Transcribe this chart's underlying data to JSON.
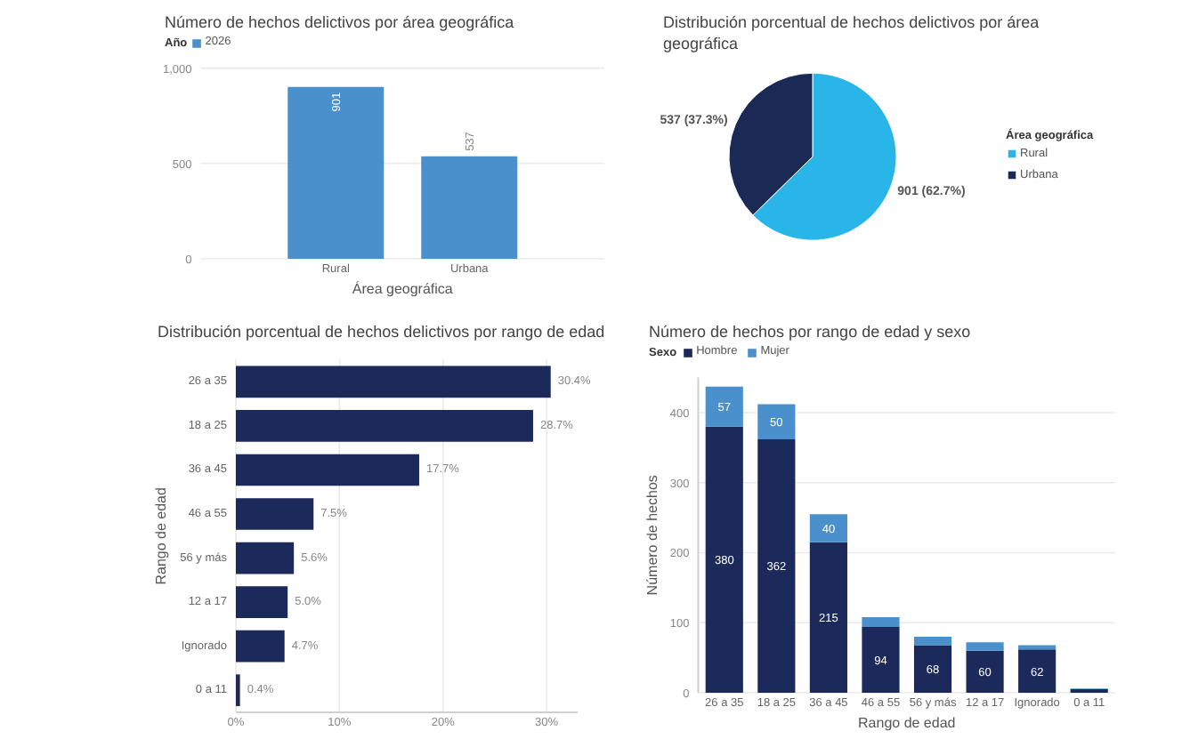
{
  "chart_data": [
    {
      "type": "bar",
      "title": "Número de hechos delictivos por área geográfica",
      "xlabel": "Área geográfica",
      "legend_title": "Año",
      "legend": "top left",
      "categories": [
        "Rural",
        "Urbana"
      ],
      "series": [
        {
          "name": "2026",
          "color": "#4a90cd",
          "values": [
            901,
            537
          ]
        }
      ],
      "ylim": [
        0,
        1000
      ],
      "yticks": [
        0,
        500,
        {
          "value": 1000,
          "label": "1,000"
        }
      ],
      "grid": "y",
      "data_labels": true
    },
    {
      "type": "pie",
      "title": "Distribución porcentual de hechos delictivos por área geográfica",
      "legend_title": "Área geográfica",
      "legend": "right",
      "categories": [
        "Rural",
        "Urbana"
      ],
      "values": [
        901,
        537
      ],
      "colors": [
        "#29b5e8",
        "#1b2a55"
      ],
      "value_labels": [
        "901 (62.7%)",
        "537 (37.3%)"
      ]
    },
    {
      "type": "bar",
      "orientation": "horizontal",
      "title": "Distribución porcentual de hechos delictivos por rango de edad",
      "ylabel": "Rango de edad",
      "categories": [
        "26 a 35",
        "18 a 25",
        "36 a 45",
        "46 a 55",
        "56 y más",
        "12 a 17",
        "Ignorado",
        "0 a 11"
      ],
      "values": [
        30.4,
        28.7,
        17.7,
        7.5,
        5.6,
        5.0,
        4.7,
        0.4
      ],
      "color": "#1b2a5a",
      "value_labels": [
        "30.4%",
        "28.7%",
        "17.7%",
        "7.5%",
        "5.6%",
        "5.0%",
        "4.7%",
        "0.4%"
      ],
      "xlim": [
        0,
        33
      ],
      "xticks": [
        {
          "value": 0,
          "label": "0%"
        },
        {
          "value": 10,
          "label": "10%"
        },
        {
          "value": 20,
          "label": "20%"
        },
        {
          "value": 30,
          "label": "30%"
        }
      ],
      "grid": "x"
    },
    {
      "type": "bar",
      "stacked": true,
      "title": "Número de hechos por rango de edad y sexo",
      "xlabel": "Rango de edad",
      "ylabel": "Número de hechos",
      "legend_title": "Sexo",
      "legend": "top left",
      "categories": [
        "26 a 35",
        "18 a 25",
        "36 a 45",
        "46 a 55",
        "56 y más",
        "12 a 17",
        "Ignorado",
        "0 a 11"
      ],
      "series": [
        {
          "name": "Hombre",
          "color": "#1b2a5a",
          "values": [
            380,
            362,
            215,
            94,
            68,
            60,
            62,
            5
          ],
          "value_labels": [
            "380",
            "362",
            "215",
            "94",
            "68",
            "60",
            "62",
            null
          ]
        },
        {
          "name": "Mujer",
          "color": "#4a90cd",
          "values": [
            57,
            50,
            40,
            14,
            12,
            12,
            6,
            1
          ],
          "value_labels": [
            "57",
            "50",
            "40",
            null,
            null,
            null,
            null,
            null
          ]
        }
      ],
      "ylim": [
        0,
        450
      ],
      "yticks": [
        0,
        100,
        200,
        300,
        400
      ],
      "grid": "y"
    }
  ]
}
